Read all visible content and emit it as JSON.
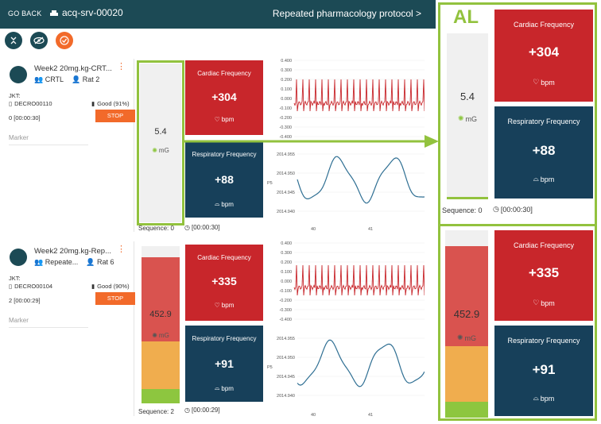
{
  "topbar": {
    "go_back": "GO BACK",
    "server": "acq-srv-00020",
    "protocol": "Repeated pharmacology protocol >"
  },
  "toolbar": {
    "icons": [
      "collapse-icon",
      "hide-icon",
      "check-icon"
    ]
  },
  "cards": [
    {
      "title": "Week2 20mg.kg-CRT...",
      "group": "CRTL",
      "animal": "Rat 2",
      "jkt_label": "JKT:",
      "device": "DECRO00110",
      "battery": "Good (91%)",
      "stop_label": "STOP",
      "time": "0 [00:00:30]",
      "marker_label": "Marker",
      "activity_value": "5.4",
      "activity_unit": "mG",
      "cardiac_title": "Cardiac Frequency",
      "cardiac_value": "+304",
      "cardiac_unit": "bpm",
      "resp_title": "Respiratory Frequency",
      "resp_value": "+88",
      "resp_unit": "bpm",
      "sequence": "Sequence: 0",
      "elapsed": "[00:00:30]",
      "ecg_ticks": [
        "0.400",
        "0.300",
        "0.200",
        "0.100",
        "0.000",
        "-0.100",
        "-0.200",
        "-0.300",
        "-0.400"
      ],
      "resp_ticks": [
        "2014.955",
        "2014.950",
        "2014.945",
        "2014.940"
      ],
      "resp_axis_label": "P5",
      "x_ticks": [
        "40",
        "41"
      ]
    },
    {
      "title": "Week2 20mg.kg-Rep...",
      "group": "Repeate...",
      "animal": "Rat 6",
      "jkt_label": "JKT:",
      "device": "DECRO00104",
      "battery": "Good (90%)",
      "stop_label": "STOP",
      "time": "2 [00:00:29]",
      "marker_label": "Marker",
      "activity_value": "452.9",
      "activity_unit": "mG",
      "cardiac_title": "Cardiac Frequency",
      "cardiac_value": "+335",
      "cardiac_unit": "bpm",
      "resp_title": "Respiratory Frequency",
      "resp_value": "+91",
      "resp_unit": "bpm",
      "sequence": "Sequence: 2",
      "elapsed": "[00:00:29]",
      "ecg_ticks": [
        "0.400",
        "0.300",
        "0.200",
        "0.100",
        "0.000",
        "-0.100",
        "-0.200",
        "-0.300",
        "-0.400"
      ],
      "resp_ticks": [
        "2014.955",
        "2014.950",
        "2014.945",
        "2014.940"
      ],
      "resp_axis_label": "P5",
      "x_ticks": [
        "40",
        "41"
      ]
    }
  ],
  "zoom": {
    "al_label": "AL",
    "top": {
      "activity_value": "5.4",
      "activity_unit": "mG",
      "cardiac_title": "Cardiac Frequency",
      "cardiac_value": "+304",
      "cardiac_unit": "bpm",
      "resp_title": "Respiratory Frequency",
      "resp_value": "+88",
      "resp_unit": "bpm",
      "sequence": "Sequence: 0",
      "elapsed": "[00:00:30]"
    },
    "bottom": {
      "activity_value": "452.9",
      "activity_unit": "mG",
      "cardiac_title": "Cardiac Frequency",
      "cardiac_value": "+335",
      "cardiac_unit": "bpm",
      "resp_title": "Respiratory Frequency",
      "resp_value": "+91",
      "resp_unit": "bpm"
    }
  },
  "colors": {
    "header": "#1c4a55",
    "accent": "#f26a2a",
    "cardiac": "#c8262b",
    "respiratory": "#17405a",
    "highlight": "#92c23e",
    "activity_high": "#d9534f",
    "activity_mid": "#f0ad4e",
    "activity_low": "#8dc63f"
  }
}
